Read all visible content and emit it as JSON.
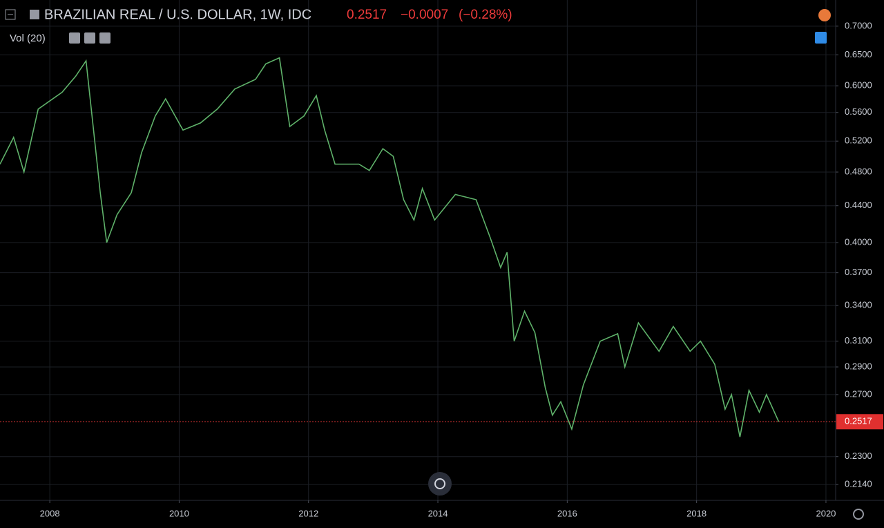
{
  "header": {
    "title": "BRAZILIAN REAL / U.S. DOLLAR, 1W, IDC",
    "price": 0.2517,
    "change": "−0.0007",
    "change_pct": "(−0.28%)",
    "indicator": "Vol (20)"
  },
  "chart_data": {
    "type": "line",
    "color": "#5fb26a",
    "log_scale": true,
    "grid": true,
    "x": [
      2007.23,
      2007.44,
      2007.6,
      2007.82,
      2008.19,
      2008.4,
      2008.56,
      2008.67,
      2008.78,
      2008.88,
      2009.04,
      2009.26,
      2009.42,
      2009.63,
      2009.79,
      2010.06,
      2010.33,
      2010.59,
      2010.86,
      2011.18,
      2011.34,
      2011.55,
      2011.71,
      2011.93,
      2012.12,
      2012.25,
      2012.41,
      2012.78,
      2012.94,
      2013.15,
      2013.31,
      2013.47,
      2013.63,
      2013.76,
      2013.95,
      2014.27,
      2014.59,
      2014.81,
      2014.97,
      2015.07,
      2015.18,
      2015.34,
      2015.5,
      2015.66,
      2015.77,
      2015.9,
      2016.07,
      2016.25,
      2016.51,
      2016.78,
      2016.89,
      2017.1,
      2017.42,
      2017.64,
      2017.9,
      2018.06,
      2018.28,
      2018.44,
      2018.54,
      2018.67,
      2018.81,
      2018.97,
      2019.08,
      2019.27
    ],
    "values": [
      0.49,
      0.525,
      0.48,
      0.565,
      0.59,
      0.615,
      0.64,
      0.54,
      0.455,
      0.4,
      0.43,
      0.455,
      0.505,
      0.555,
      0.58,
      0.535,
      0.545,
      0.565,
      0.595,
      0.61,
      0.635,
      0.645,
      0.54,
      0.555,
      0.585,
      0.535,
      0.49,
      0.49,
      0.482,
      0.51,
      0.5,
      0.447,
      0.424,
      0.46,
      0.424,
      0.453,
      0.447,
      0.405,
      0.375,
      0.39,
      0.31,
      0.335,
      0.317,
      0.275,
      0.256,
      0.265,
      0.247,
      0.277,
      0.31,
      0.316,
      0.29,
      0.325,
      0.302,
      0.322,
      0.302,
      0.31,
      0.292,
      0.26,
      0.27,
      0.242,
      0.273,
      0.258,
      0.27,
      0.2517
    ],
    "xlim": [
      2007.23,
      2020.15
    ],
    "xticks": [
      2008,
      2010,
      2012,
      2014,
      2016,
      2018,
      2020
    ],
    "ylim": [
      0.2054,
      0.749
    ],
    "yticks": [
      {
        "value": 0.214,
        "label": "0.2140"
      },
      {
        "value": 0.23,
        "label": "0.2300"
      },
      {
        "value": 0.27,
        "label": "0.2700"
      },
      {
        "value": 0.29,
        "label": "0.2900"
      },
      {
        "value": 0.31,
        "label": "0.3100"
      },
      {
        "value": 0.34,
        "label": "0.3400"
      },
      {
        "value": 0.37,
        "label": "0.3700"
      },
      {
        "value": 0.4,
        "label": "0.4000"
      },
      {
        "value": 0.44,
        "label": "0.4400"
      },
      {
        "value": 0.48,
        "label": "0.4800"
      },
      {
        "value": 0.52,
        "label": "0.5200"
      },
      {
        "value": 0.56,
        "label": "0.5600"
      },
      {
        "value": 0.6,
        "label": "0.6000"
      },
      {
        "value": 0.65,
        "label": "0.6500"
      },
      {
        "value": 0.7,
        "label": "0.7000"
      }
    ]
  }
}
